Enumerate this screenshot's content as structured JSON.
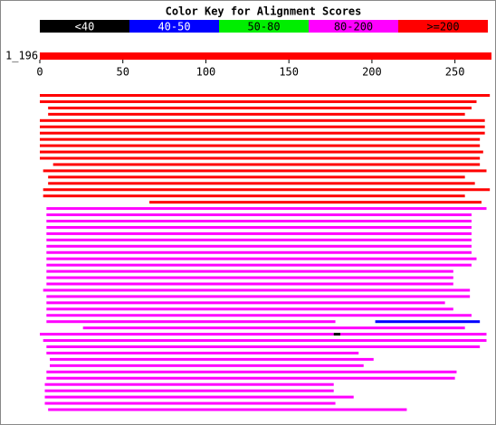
{
  "color_key": {
    "title": "Color Key for Alignment Scores",
    "items": [
      {
        "label": "<40",
        "color": "#000000",
        "text_color": "#ffffff"
      },
      {
        "label": "40-50",
        "color": "#0000ff",
        "text_color": "#ffffff"
      },
      {
        "label": "50-80",
        "color": "#00ee00",
        "text_color": "#000000"
      },
      {
        "label": "80-200",
        "color": "#ff00ff",
        "text_color": "#000000"
      },
      {
        "label": ">=200",
        "color": "#ff0000",
        "text_color": "#000000"
      }
    ]
  },
  "query": {
    "label": "1_196",
    "start": 0,
    "end": 272,
    "color": "#ff0000"
  },
  "axis": {
    "xlim": [
      0,
      272
    ],
    "xticks": [
      0,
      50,
      100,
      150,
      200,
      250
    ]
  },
  "hits": [
    [
      {
        "start": 0,
        "end": 271,
        "color": "#ff0000"
      }
    ],
    [
      {
        "start": 0,
        "end": 263,
        "color": "#ff0000"
      }
    ],
    [
      {
        "start": 5,
        "end": 260,
        "color": "#ff0000"
      }
    ],
    [
      {
        "start": 5,
        "end": 256,
        "color": "#ff0000"
      }
    ],
    [
      {
        "start": 0,
        "end": 268,
        "color": "#ff0000"
      }
    ],
    [
      {
        "start": 0,
        "end": 268,
        "color": "#ff0000"
      }
    ],
    [
      {
        "start": 0,
        "end": 268,
        "color": "#ff0000"
      }
    ],
    [
      {
        "start": 0,
        "end": 265,
        "color": "#ff0000"
      }
    ],
    [
      {
        "start": 0,
        "end": 265,
        "color": "#ff0000"
      }
    ],
    [
      {
        "start": 0,
        "end": 267,
        "color": "#ff0000"
      }
    ],
    [
      {
        "start": 0,
        "end": 265,
        "color": "#ff0000"
      }
    ],
    [
      {
        "start": 8,
        "end": 265,
        "color": "#ff0000"
      }
    ],
    [
      {
        "start": 2,
        "end": 269,
        "color": "#ff0000"
      }
    ],
    [
      {
        "start": 5,
        "end": 256,
        "color": "#ff0000"
      }
    ],
    [
      {
        "start": 5,
        "end": 262,
        "color": "#ff0000"
      }
    ],
    [
      {
        "start": 2,
        "end": 271,
        "color": "#ff0000"
      }
    ],
    [
      {
        "start": 2,
        "end": 256,
        "color": "#ff0000"
      }
    ],
    [
      {
        "start": 66,
        "end": 266,
        "color": "#ff0000"
      }
    ],
    [
      {
        "start": 4,
        "end": 269,
        "color": "#ff00ff"
      }
    ],
    [
      {
        "start": 4,
        "end": 260,
        "color": "#ff00ff"
      }
    ],
    [
      {
        "start": 4,
        "end": 260,
        "color": "#ff00ff"
      }
    ],
    [
      {
        "start": 4,
        "end": 260,
        "color": "#ff00ff"
      }
    ],
    [
      {
        "start": 4,
        "end": 260,
        "color": "#ff00ff"
      }
    ],
    [
      {
        "start": 4,
        "end": 260,
        "color": "#ff00ff"
      }
    ],
    [
      {
        "start": 4,
        "end": 260,
        "color": "#ff00ff"
      }
    ],
    [
      {
        "start": 4,
        "end": 260,
        "color": "#ff00ff"
      }
    ],
    [
      {
        "start": 4,
        "end": 263,
        "color": "#ff00ff"
      }
    ],
    [
      {
        "start": 4,
        "end": 260,
        "color": "#ff00ff"
      }
    ],
    [
      {
        "start": 4,
        "end": 249,
        "color": "#ff00ff"
      }
    ],
    [
      {
        "start": 4,
        "end": 249,
        "color": "#ff00ff"
      }
    ],
    [
      {
        "start": 4,
        "end": 249,
        "color": "#ff00ff"
      }
    ],
    [
      {
        "start": 2,
        "end": 259,
        "color": "#ff00ff"
      }
    ],
    [
      {
        "start": 4,
        "end": 259,
        "color": "#ff00ff"
      }
    ],
    [
      {
        "start": 4,
        "end": 244,
        "color": "#ff00ff"
      }
    ],
    [
      {
        "start": 4,
        "end": 249,
        "color": "#ff00ff"
      }
    ],
    [
      {
        "start": 4,
        "end": 260,
        "color": "#ff00ff"
      }
    ],
    [
      {
        "start": 4,
        "end": 178,
        "color": "#ff00ff"
      },
      {
        "start": 202,
        "end": 265,
        "color": "#0000ff"
      }
    ],
    [
      {
        "start": 26,
        "end": 256,
        "color": "#ff00ff"
      }
    ],
    [
      {
        "start": 0,
        "end": 177,
        "color": "#ff00ff"
      },
      {
        "start": 177,
        "end": 181,
        "color": "#000000"
      },
      {
        "start": 181,
        "end": 269,
        "color": "#ff00ff"
      }
    ],
    [
      {
        "start": 2,
        "end": 269,
        "color": "#ff00ff"
      }
    ],
    [
      {
        "start": 4,
        "end": 265,
        "color": "#ff00ff"
      }
    ],
    [
      {
        "start": 4,
        "end": 192,
        "color": "#ff00ff"
      }
    ],
    [
      {
        "start": 6,
        "end": 201,
        "color": "#ff00ff"
      }
    ],
    [
      {
        "start": 6,
        "end": 195,
        "color": "#ff00ff"
      }
    ],
    [
      {
        "start": 4,
        "end": 251,
        "color": "#ff00ff"
      }
    ],
    [
      {
        "start": 4,
        "end": 250,
        "color": "#ff00ff"
      }
    ],
    [
      {
        "start": 3,
        "end": 177,
        "color": "#ff00ff"
      }
    ],
    [
      {
        "start": 3,
        "end": 177,
        "color": "#ff00ff"
      }
    ],
    [
      {
        "start": 3,
        "end": 189,
        "color": "#ff00ff"
      }
    ],
    [
      {
        "start": 3,
        "end": 178,
        "color": "#ff00ff"
      }
    ],
    [
      {
        "start": 5,
        "end": 221,
        "color": "#ff00ff"
      }
    ]
  ]
}
